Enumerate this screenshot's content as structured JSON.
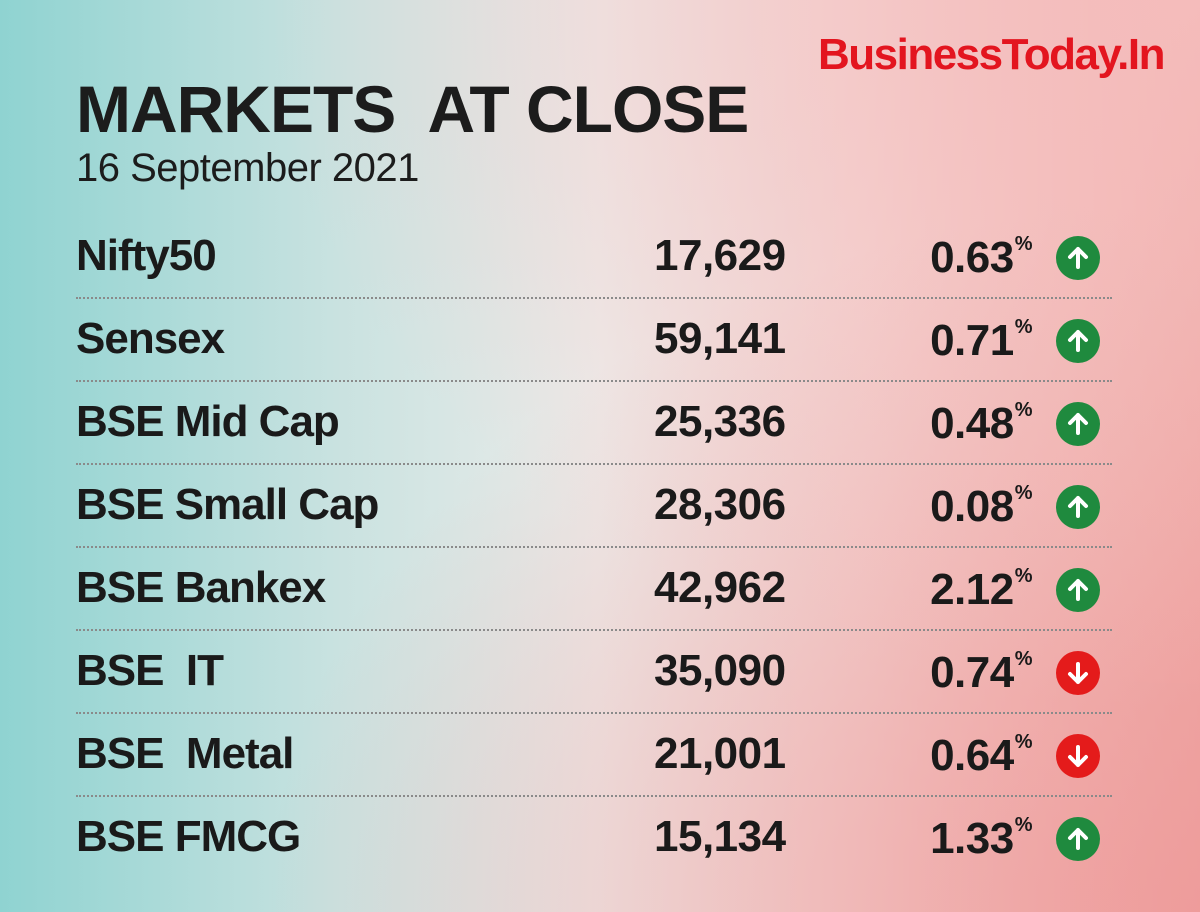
{
  "brand": "BusinessToday.In",
  "title": "MARKETS  AT CLOSE",
  "date": "16 September 2021",
  "colors": {
    "brand": "#e3151f",
    "up": "#1f8a3e",
    "down": "#e41b1b"
  },
  "rows": [
    {
      "name": "Nifty50",
      "value": "17,629",
      "change": "0.63",
      "unit": "%",
      "direction": "up",
      "icon": "up-arrow-icon"
    },
    {
      "name": "Sensex",
      "value": "59,141",
      "change": "0.71",
      "unit": "%",
      "direction": "up",
      "icon": "up-arrow-icon"
    },
    {
      "name": "BSE Mid Cap",
      "value": "25,336",
      "change": "0.48",
      "unit": "%",
      "direction": "up",
      "icon": "up-arrow-icon"
    },
    {
      "name": "BSE Small Cap",
      "value": "28,306",
      "change": "0.08",
      "unit": "%",
      "direction": "up",
      "icon": "up-arrow-icon"
    },
    {
      "name": "BSE Bankex",
      "value": "42,962",
      "change": "2.12",
      "unit": "%",
      "direction": "up",
      "icon": "up-arrow-icon"
    },
    {
      "name": "BSE  IT",
      "value": "35,090",
      "change": "0.74",
      "unit": "%",
      "direction": "down",
      "icon": "down-arrow-icon"
    },
    {
      "name": "BSE  Metal",
      "value": "21,001",
      "change": "0.64",
      "unit": "%",
      "direction": "down",
      "icon": "down-arrow-icon"
    },
    {
      "name": "BSE FMCG",
      "value": "15,134",
      "change": "1.33",
      "unit": "%",
      "direction": "up",
      "icon": "up-arrow-icon"
    }
  ]
}
